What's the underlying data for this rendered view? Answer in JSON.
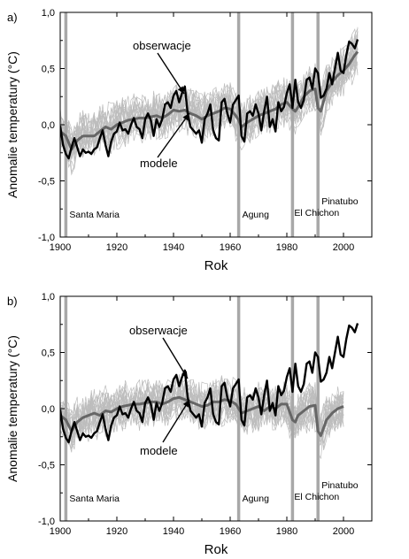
{
  "chart_data": [
    {
      "panel_label": "a)",
      "type": "line",
      "xlabel": "Rok",
      "ylabel": "Anomalie temperatury (°C)",
      "xlim": [
        1900,
        2010
      ],
      "ylim": [
        -1.0,
        1.0
      ],
      "x_ticks": [
        "1900",
        "1920",
        "1940",
        "1960",
        "1980",
        "2000"
      ],
      "y_ticks": [
        "-1,0",
        "-0,5",
        "0,0",
        "0,5",
        "1,0"
      ],
      "annotations": [
        "obserwacje",
        "modele"
      ],
      "eruptions": [
        {
          "name": "Santa Maria",
          "year": 1902
        },
        {
          "name": "Agung",
          "year": 1963
        },
        {
          "name": "El Chichon",
          "year": 1982
        },
        {
          "name": "Pinatubo",
          "year": 1991
        }
      ],
      "series": [
        {
          "name": "obserwacje",
          "color": "#000000",
          "x": [
            1900,
            1901,
            1902,
            1903,
            1904,
            1905,
            1906,
            1907,
            1908,
            1909,
            1910,
            1911,
            1912,
            1913,
            1914,
            1915,
            1916,
            1917,
            1918,
            1919,
            1920,
            1921,
            1922,
            1923,
            1924,
            1925,
            1926,
            1927,
            1928,
            1929,
            1930,
            1931,
            1932,
            1933,
            1934,
            1935,
            1936,
            1937,
            1938,
            1939,
            1940,
            1941,
            1942,
            1943,
            1944,
            1945,
            1946,
            1947,
            1948,
            1949,
            1950,
            1951,
            1952,
            1953,
            1954,
            1955,
            1956,
            1957,
            1958,
            1959,
            1960,
            1961,
            1962,
            1963,
            1964,
            1965,
            1966,
            1967,
            1968,
            1969,
            1970,
            1971,
            1972,
            1973,
            1974,
            1975,
            1976,
            1977,
            1978,
            1979,
            1980,
            1981,
            1982,
            1983,
            1984,
            1985,
            1986,
            1987,
            1988,
            1989,
            1990,
            1991,
            1992,
            1993,
            1994,
            1995,
            1996,
            1997,
            1998,
            1999,
            2000,
            2001,
            2002,
            2003,
            2004,
            2005
          ],
          "values": [
            -0.01,
            -0.18,
            -0.26,
            -0.3,
            -0.2,
            -0.12,
            -0.2,
            -0.28,
            -0.22,
            -0.25,
            -0.24,
            -0.26,
            -0.22,
            -0.2,
            -0.12,
            -0.05,
            -0.18,
            -0.28,
            -0.15,
            -0.08,
            -0.06,
            0.02,
            -0.05,
            -0.04,
            -0.08,
            0.0,
            0.06,
            -0.02,
            -0.04,
            -0.12,
            0.05,
            0.1,
            0.04,
            -0.1,
            0.05,
            -0.02,
            0.05,
            0.18,
            0.2,
            0.15,
            0.26,
            0.3,
            0.2,
            0.28,
            0.34,
            0.1,
            -0.02,
            -0.05,
            -0.08,
            -0.05,
            -0.16,
            0.05,
            0.1,
            0.18,
            -0.05,
            -0.12,
            -0.14,
            0.2,
            0.23,
            0.1,
            0.02,
            0.18,
            0.22,
            0.26,
            -0.1,
            -0.15,
            0.1,
            0.12,
            0.08,
            0.18,
            0.1,
            -0.05,
            0.12,
            0.25,
            -0.02,
            0.05,
            -0.06,
            0.2,
            0.12,
            0.16,
            0.28,
            0.36,
            0.15,
            0.4,
            0.2,
            0.15,
            0.22,
            0.4,
            0.42,
            0.32,
            0.5,
            0.46,
            0.24,
            0.26,
            0.32,
            0.46,
            0.36,
            0.5,
            0.64,
            0.48,
            0.46,
            0.62,
            0.74,
            0.72,
            0.68,
            0.76
          ]
        },
        {
          "name": "modele",
          "color": "#666666",
          "x": [
            1900,
            1902,
            1904,
            1906,
            1908,
            1910,
            1912,
            1914,
            1916,
            1918,
            1920,
            1922,
            1924,
            1926,
            1928,
            1930,
            1932,
            1934,
            1936,
            1938,
            1940,
            1942,
            1944,
            1946,
            1948,
            1950,
            1952,
            1954,
            1956,
            1958,
            1960,
            1962,
            1963,
            1964,
            1966,
            1968,
            1970,
            1972,
            1974,
            1976,
            1978,
            1980,
            1982,
            1983,
            1984,
            1986,
            1988,
            1990,
            1991,
            1992,
            1994,
            1996,
            1998,
            2000,
            2002,
            2004,
            2005
          ],
          "values": [
            -0.06,
            -0.1,
            -0.22,
            -0.14,
            -0.1,
            -0.1,
            -0.1,
            -0.06,
            -0.02,
            -0.04,
            0.0,
            0.02,
            0.04,
            0.05,
            0.06,
            0.06,
            0.07,
            0.08,
            0.06,
            0.09,
            0.13,
            0.12,
            0.13,
            0.1,
            0.08,
            0.05,
            0.08,
            0.1,
            0.12,
            0.15,
            0.14,
            0.08,
            0.04,
            -0.02,
            0.02,
            0.05,
            0.08,
            0.1,
            0.12,
            0.14,
            0.18,
            0.2,
            0.14,
            0.12,
            0.16,
            0.25,
            0.3,
            0.32,
            0.15,
            0.12,
            0.3,
            0.38,
            0.44,
            0.48,
            0.54,
            0.62,
            0.65
          ]
        }
      ]
    },
    {
      "panel_label": "b)",
      "type": "line",
      "xlabel": "Rok",
      "ylabel": "Anomalie temperatury (°C)",
      "xlim": [
        1900,
        2010
      ],
      "ylim": [
        -1.0,
        1.0
      ],
      "x_ticks": [
        "1900",
        "1920",
        "1940",
        "1960",
        "1980",
        "2000"
      ],
      "y_ticks": [
        "-1,0",
        "-0,5",
        "0,0",
        "0,5",
        "1,0"
      ],
      "annotations": [
        "obserwacje",
        "modele"
      ],
      "eruptions": [
        {
          "name": "Santa Maria",
          "year": 1902
        },
        {
          "name": "Agung",
          "year": 1963
        },
        {
          "name": "El Chichon",
          "year": 1982
        },
        {
          "name": "Pinatubo",
          "year": 1991
        }
      ],
      "series": [
        {
          "name": "obserwacje",
          "color": "#000000",
          "x": [
            1900,
            1901,
            1902,
            1903,
            1904,
            1905,
            1906,
            1907,
            1908,
            1909,
            1910,
            1911,
            1912,
            1913,
            1914,
            1915,
            1916,
            1917,
            1918,
            1919,
            1920,
            1921,
            1922,
            1923,
            1924,
            1925,
            1926,
            1927,
            1928,
            1929,
            1930,
            1931,
            1932,
            1933,
            1934,
            1935,
            1936,
            1937,
            1938,
            1939,
            1940,
            1941,
            1942,
            1943,
            1944,
            1945,
            1946,
            1947,
            1948,
            1949,
            1950,
            1951,
            1952,
            1953,
            1954,
            1955,
            1956,
            1957,
            1958,
            1959,
            1960,
            1961,
            1962,
            1963,
            1964,
            1965,
            1966,
            1967,
            1968,
            1969,
            1970,
            1971,
            1972,
            1973,
            1974,
            1975,
            1976,
            1977,
            1978,
            1979,
            1980,
            1981,
            1982,
            1983,
            1984,
            1985,
            1986,
            1987,
            1988,
            1989,
            1990,
            1991,
            1992,
            1993,
            1994,
            1995,
            1996,
            1997,
            1998,
            1999,
            2000,
            2001,
            2002,
            2003,
            2004,
            2005
          ],
          "values": [
            -0.01,
            -0.18,
            -0.26,
            -0.3,
            -0.2,
            -0.12,
            -0.2,
            -0.28,
            -0.22,
            -0.25,
            -0.24,
            -0.26,
            -0.22,
            -0.2,
            -0.12,
            -0.05,
            -0.18,
            -0.28,
            -0.15,
            -0.08,
            -0.06,
            0.02,
            -0.05,
            -0.04,
            -0.08,
            0.0,
            0.06,
            -0.02,
            -0.04,
            -0.12,
            0.05,
            0.1,
            0.04,
            -0.1,
            0.05,
            -0.02,
            0.05,
            0.18,
            0.2,
            0.15,
            0.26,
            0.3,
            0.2,
            0.28,
            0.34,
            0.1,
            -0.02,
            -0.05,
            -0.08,
            -0.05,
            -0.16,
            0.05,
            0.1,
            0.18,
            -0.05,
            -0.12,
            -0.14,
            0.2,
            0.23,
            0.1,
            0.02,
            0.18,
            0.22,
            0.26,
            -0.1,
            -0.15,
            0.1,
            0.12,
            0.08,
            0.18,
            0.1,
            -0.05,
            0.12,
            0.25,
            -0.02,
            0.05,
            -0.06,
            0.2,
            0.12,
            0.16,
            0.28,
            0.36,
            0.15,
            0.4,
            0.2,
            0.15,
            0.22,
            0.4,
            0.42,
            0.32,
            0.5,
            0.46,
            0.24,
            0.26,
            0.32,
            0.46,
            0.36,
            0.5,
            0.64,
            0.48,
            0.46,
            0.62,
            0.74,
            0.72,
            0.68,
            0.76
          ]
        },
        {
          "name": "modele",
          "color": "#666666",
          "x": [
            1900,
            1902,
            1904,
            1906,
            1908,
            1910,
            1912,
            1914,
            1916,
            1918,
            1920,
            1922,
            1924,
            1926,
            1928,
            1930,
            1932,
            1934,
            1936,
            1938,
            1940,
            1942,
            1944,
            1946,
            1948,
            1950,
            1952,
            1954,
            1956,
            1958,
            1960,
            1962,
            1963,
            1964,
            1966,
            1968,
            1970,
            1972,
            1974,
            1976,
            1978,
            1980,
            1982,
            1983,
            1984,
            1986,
            1988,
            1990,
            1991,
            1992,
            1994,
            1996,
            1998,
            2000
          ],
          "values": [
            -0.06,
            -0.1,
            -0.2,
            -0.12,
            -0.08,
            -0.06,
            -0.04,
            -0.06,
            -0.02,
            -0.03,
            0.0,
            0.02,
            0.03,
            0.04,
            0.04,
            0.05,
            0.06,
            0.06,
            0.04,
            0.06,
            0.09,
            0.1,
            0.08,
            0.06,
            0.04,
            0.02,
            0.03,
            0.06,
            0.06,
            0.08,
            0.07,
            0.04,
            0.0,
            -0.04,
            -0.02,
            0.0,
            0.02,
            -0.02,
            0.02,
            0.0,
            0.04,
            0.04,
            -0.1,
            -0.12,
            -0.06,
            -0.02,
            0.02,
            0.03,
            -0.2,
            -0.24,
            -0.1,
            -0.04,
            0.0,
            0.02
          ]
        }
      ]
    }
  ]
}
